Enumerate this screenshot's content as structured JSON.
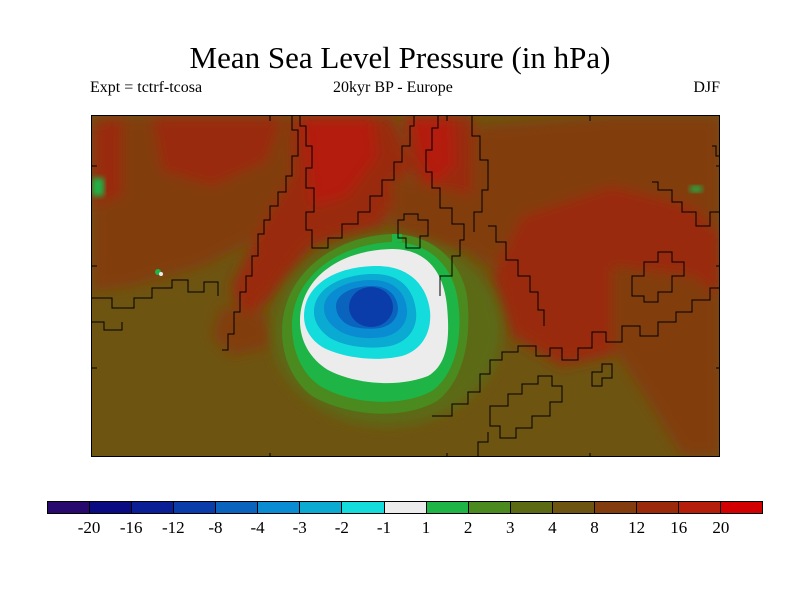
{
  "title": "Mean Sea Level Pressure (in hPa)",
  "subtitle_left": "Expt = tctrf-tcosa",
  "subtitle_center": "20kyr BP - Europe",
  "subtitle_right": "DJF",
  "map": {
    "region": "Europe",
    "season": "DJF",
    "variable": "Mean Sea Level Pressure difference",
    "units": "hPa"
  },
  "colorbar": {
    "colors": [
      "#280a6e",
      "#0a0a82",
      "#0a1e96",
      "#0a3caa",
      "#0a64be",
      "#0a8cd2",
      "#0aaad2",
      "#14dcdc",
      "#ececec",
      "#1eb446",
      "#4a8a1e",
      "#5c6a14",
      "#6e5411",
      "#823c0e",
      "#9a2a0a",
      "#b41e0a",
      "#d20000"
    ],
    "labels": [
      "-20",
      "-16",
      "-12",
      "-8",
      "-4",
      "-3",
      "-2",
      "-1",
      "1",
      "2",
      "3",
      "4",
      "8",
      "12",
      "16",
      "20"
    ]
  }
}
